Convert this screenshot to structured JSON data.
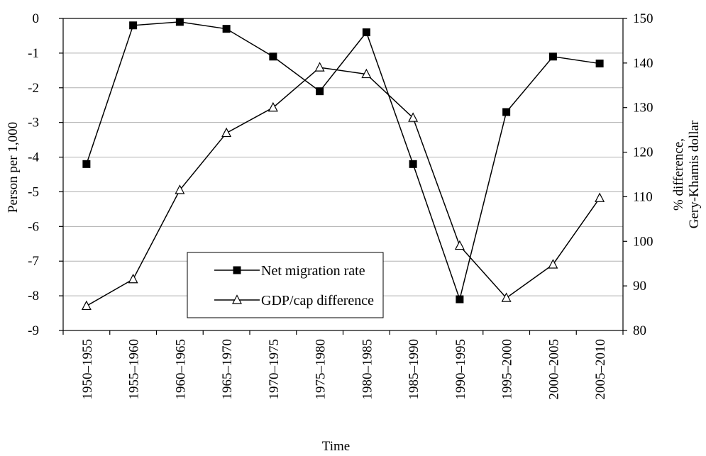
{
  "chart_data": {
    "type": "line",
    "title": "",
    "xlabel": "Time",
    "ylabel_left": "Person per 1,000",
    "ylabel_right_line1": "% difference,",
    "ylabel_right_line2": "Gery-Khamis dollar",
    "categories": [
      "1950–1955",
      "1955–1960",
      "1960–1965",
      "1965–1970",
      "1970–1975",
      "1975–1980",
      "1980–1985",
      "1985–1990",
      "1990–1995",
      "1995–2000",
      "2000–2005",
      "2005–2010"
    ],
    "ylim_left": [
      -9,
      0
    ],
    "ylim_right": [
      80,
      150
    ],
    "yticks_left": [
      0,
      -1,
      -2,
      -3,
      -4,
      -5,
      -6,
      -7,
      -8,
      -9
    ],
    "yticks_right": [
      150,
      140,
      130,
      120,
      110,
      100,
      90,
      80
    ],
    "grid": true,
    "legend_position": "bottom-center",
    "series": [
      {
        "name": "Net migration rate",
        "axis": "left",
        "marker": "square",
        "color": "#000000",
        "values": [
          -4.2,
          -0.2,
          -0.1,
          -0.3,
          -1.1,
          -2.1,
          -0.4,
          -4.2,
          -8.1,
          -2.7,
          -1.1,
          -1.3
        ]
      },
      {
        "name": "GDP/cap difference",
        "axis": "right",
        "marker": "triangle",
        "color": "#000000",
        "values": [
          85.5,
          91.5,
          111.5,
          124.3,
          130,
          139,
          137.5,
          127.7,
          99,
          87.3,
          94.8,
          109.7
        ]
      }
    ]
  }
}
